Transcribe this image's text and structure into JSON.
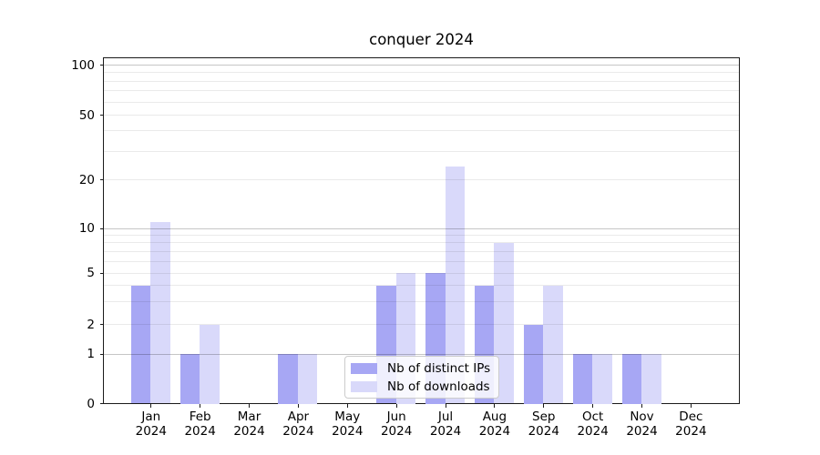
{
  "title": "conquer 2024",
  "chart_data": {
    "type": "bar",
    "title": "conquer 2024",
    "xlabel": "",
    "ylabel": "",
    "categories": [
      "Jan 2024",
      "Feb 2024",
      "Mar 2024",
      "Apr 2024",
      "May 2024",
      "Jun 2024",
      "Jul 2024",
      "Aug 2024",
      "Sep 2024",
      "Oct 2024",
      "Nov 2024",
      "Dec 2024"
    ],
    "series": [
      {
        "name": "Nb of distinct IPs",
        "color": "#a7a7f4",
        "values": [
          4,
          1,
          0,
          1,
          0,
          4,
          5,
          4,
          2,
          1,
          1,
          0
        ]
      },
      {
        "name": "Nb of downloads",
        "color": "#d9d9fa",
        "values": [
          11,
          2,
          0,
          1,
          0,
          5,
          24,
          8,
          4,
          1,
          1,
          0
        ]
      }
    ],
    "yscale": "symlog",
    "ylim": [
      0,
      100
    ],
    "yticks": [
      0,
      1,
      2,
      5,
      10,
      20,
      50,
      100
    ],
    "major_gridlines": [
      1,
      10,
      100
    ],
    "minor_gridlines": [
      2,
      3,
      4,
      5,
      6,
      7,
      8,
      9,
      20,
      30,
      40,
      50,
      60,
      70,
      80,
      90
    ],
    "grid": true,
    "legend_position": "lower center"
  },
  "colors": {
    "bar_ips": "#a7a7f4",
    "bar_downloads": "#d9d9fa",
    "grid_major": "#c4c4c4",
    "grid_minor": "#ebebeb",
    "spine": "#1a1a1a",
    "legend_border": "#cccccc",
    "legend_background": "#ffffff"
  }
}
